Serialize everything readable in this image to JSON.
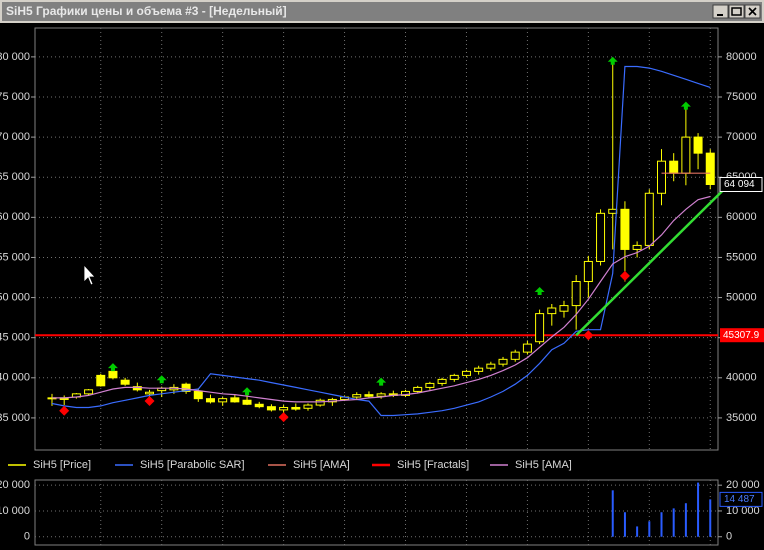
{
  "window_title": "SiH5 Графики цены и объема #3 - [Недельный]",
  "chart_data": [
    {
      "type": "candlestick",
      "ylim": [
        31000,
        83600
      ],
      "yticks": [
        35000,
        40000,
        45000,
        50000,
        55000,
        60000,
        65000,
        70000,
        75000,
        80000
      ],
      "yticks_left": [
        {
          "value": 35000,
          "label": "35 000"
        },
        {
          "value": 40000,
          "label": "40 000"
        },
        {
          "value": 45000,
          "label": "45 000"
        },
        {
          "value": 50000,
          "label": "50 000"
        },
        {
          "value": 55000,
          "label": "55 000"
        },
        {
          "value": 60000,
          "label": "60 000"
        },
        {
          "value": 65000,
          "label": "65 000"
        },
        {
          "value": 70000,
          "label": "70 000"
        },
        {
          "value": 75000,
          "label": "75 000"
        },
        {
          "value": 80000,
          "label": "80 000"
        }
      ],
      "grid": true,
      "series": [
        {
          "name": "SiH5 [Price]",
          "color": "#ffff00",
          "open": [
            37400,
            37500,
            37600,
            38000,
            40300,
            40800,
            39700,
            38900,
            38000,
            38400,
            38500,
            39200,
            38300,
            37400,
            37000,
            37500,
            37200,
            36700,
            36400,
            36000,
            36300,
            36200,
            36600,
            37000,
            37300,
            37600,
            37900,
            37700,
            38000,
            37800,
            38300,
            38800,
            39300,
            39800,
            40300,
            40800,
            41200,
            41700,
            42300,
            43200,
            44500,
            48000,
            48300,
            49000,
            52000,
            54500,
            60500,
            61000,
            56000,
            56500,
            63000,
            67000,
            65500,
            70000,
            68000
          ],
          "high": [
            38000,
            37800,
            38100,
            38600,
            40500,
            41300,
            40000,
            39400,
            38500,
            38900,
            39200,
            39400,
            38700,
            37900,
            37600,
            37900,
            38300,
            37000,
            36700,
            36600,
            36800,
            36800,
            37400,
            37500,
            37800,
            38200,
            38300,
            38200,
            38400,
            38500,
            39000,
            39500,
            40000,
            40500,
            41000,
            41500,
            42000,
            42600,
            43500,
            44600,
            48500,
            49200,
            49600,
            52800,
            55200,
            61000,
            79500,
            62000,
            57000,
            63500,
            68500,
            68000,
            73500,
            70500,
            68500
          ],
          "low": [
            36500,
            36600,
            37400,
            37800,
            38900,
            39800,
            39000,
            38300,
            37200,
            37600,
            38000,
            38000,
            37000,
            36800,
            36500,
            36900,
            36600,
            36200,
            35800,
            35300,
            35900,
            35900,
            36400,
            36500,
            37100,
            37300,
            37500,
            37400,
            37600,
            37600,
            38100,
            38500,
            39000,
            39500,
            40000,
            40400,
            40900,
            41400,
            42000,
            42900,
            44200,
            46500,
            47500,
            46000,
            50000,
            54000,
            56000,
            52000,
            55000,
            56000,
            61500,
            64500,
            64000,
            66000,
            63500
          ],
          "close": [
            37500,
            37300,
            38000,
            38500,
            39000,
            40000,
            39200,
            38500,
            38200,
            38700,
            38800,
            38300,
            37400,
            37000,
            37400,
            37000,
            36700,
            36400,
            36000,
            36300,
            36100,
            36600,
            37200,
            37300,
            37600,
            37900,
            37700,
            38000,
            37800,
            38300,
            38800,
            39300,
            39800,
            40300,
            40800,
            41200,
            41700,
            42300,
            43200,
            44200,
            48000,
            48700,
            49000,
            52000,
            54500,
            60500,
            61000,
            56000,
            56500,
            63000,
            67000,
            65500,
            70000,
            68000,
            64094
          ]
        },
        {
          "name": "SiH5 [Parabolic SAR]",
          "color": "#3a6cff",
          "values": [
            36800,
            36500,
            36300,
            36300,
            36500,
            36900,
            37200,
            37500,
            37800,
            38000,
            38200,
            38400,
            38600,
            40500,
            40300,
            40100,
            39900,
            39700,
            39400,
            39100,
            38800,
            38500,
            38200,
            37900,
            37600,
            37300,
            37100,
            35300,
            35300,
            35400,
            35500,
            35700,
            35900,
            36200,
            36600,
            37000,
            37600,
            38300,
            39200,
            40300,
            41800,
            43500,
            44300,
            45800,
            46000,
            46000,
            53000,
            78800,
            78800,
            78600,
            78200,
            77700,
            77200,
            76700,
            76200
          ]
        },
        {
          "name": "SiH5 [AMA]",
          "color": "#e07060",
          "values": [
            null,
            null,
            null,
            null,
            null,
            null,
            null,
            null,
            null,
            null,
            null,
            null,
            null,
            null,
            null,
            null,
            null,
            null,
            null,
            null,
            null,
            null,
            null,
            null,
            null,
            null,
            null,
            null,
            null,
            null,
            null,
            null,
            null,
            null,
            null,
            null,
            null,
            null,
            null,
            null,
            null,
            null,
            null,
            null,
            null,
            null,
            null,
            null,
            null,
            null,
            65500,
            65500,
            65500,
            65500,
            65500
          ]
        },
        {
          "name": "SiH5 [Fractals]",
          "color": "#ff0000",
          "up_color": "#00cc00",
          "up": [
            null,
            null,
            null,
            null,
            null,
            41200,
            null,
            null,
            null,
            39700,
            null,
            null,
            null,
            null,
            null,
            null,
            38200,
            null,
            null,
            null,
            null,
            null,
            null,
            null,
            null,
            null,
            null,
            39400,
            null,
            null,
            null,
            null,
            null,
            null,
            null,
            null,
            null,
            null,
            null,
            null,
            50700,
            null,
            null,
            null,
            null,
            null,
            79400,
            null,
            null,
            null,
            null,
            null,
            73800,
            null,
            null
          ],
          "down": [
            null,
            35900,
            null,
            null,
            null,
            null,
            null,
            null,
            37100,
            null,
            null,
            null,
            null,
            null,
            null,
            null,
            null,
            null,
            null,
            35100,
            null,
            null,
            null,
            null,
            null,
            null,
            null,
            null,
            null,
            null,
            null,
            null,
            null,
            null,
            null,
            null,
            null,
            null,
            null,
            null,
            null,
            null,
            null,
            null,
            45300,
            null,
            null,
            52700,
            null,
            null,
            null,
            null,
            null,
            null,
            null
          ]
        },
        {
          "name": "SiH5 [AMA]",
          "color": "#d080d0",
          "values": [
            37500,
            37500,
            37600,
            37800,
            38200,
            38600,
            38800,
            38800,
            38700,
            38700,
            38700,
            38600,
            38400,
            38200,
            38000,
            37900,
            37700,
            37500,
            37300,
            37100,
            37000,
            37000,
            37000,
            37100,
            37200,
            37300,
            37500,
            37600,
            37800,
            37900,
            38100,
            38400,
            38700,
            39000,
            39400,
            39800,
            40300,
            40900,
            41600,
            42500,
            43800,
            45100,
            46300,
            47900,
            49800,
            52000,
            54200,
            55100,
            55600,
            56400,
            57800,
            59600,
            61000,
            62200,
            62600
          ]
        }
      ],
      "trend_line": {
        "color": "#33dd33",
        "x": [
          43,
          55
        ],
        "values": [
          45300,
          63300
        ]
      },
      "level": {
        "value": 45307.9,
        "color": "#ff0000"
      },
      "last_price": {
        "value": 64094,
        "label": "64 094"
      }
    },
    {
      "type": "bar",
      "color": "#2a5cff",
      "ylim": [
        -3200,
        22000
      ],
      "yticks": [
        {
          "value": 0,
          "label": "0"
        },
        {
          "value": 10000,
          "label": "10 000"
        },
        {
          "value": 20000,
          "label": "20 000"
        }
      ],
      "values": [
        0,
        0,
        0,
        0,
        0,
        0,
        0,
        0,
        0,
        0,
        0,
        0,
        0,
        0,
        0,
        0,
        0,
        0,
        0,
        0,
        0,
        0,
        0,
        0,
        0,
        0,
        0,
        0,
        0,
        0,
        0,
        0,
        0,
        0,
        0,
        0,
        0,
        0,
        0,
        0,
        0,
        0,
        0,
        0,
        0,
        0,
        18000,
        9500,
        4000,
        6000,
        9500,
        11000,
        13000,
        21000,
        14487
      ],
      "last_volume": {
        "value": 14487,
        "label": "14 487"
      }
    }
  ]
}
